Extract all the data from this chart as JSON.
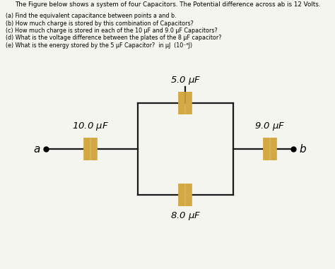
{
  "title_text": "The Figure below shows a system of four Capacitors. The Potential difference across ab is 12 Volts.",
  "questions": [
    "(a) Find the equivalent capacitance between points a and b.",
    "(b) How much charge is stored by this combination of Capacitors?",
    "(c) How much charge is stored in each of the 10 μF and 9.0 μF Capacitors?",
    "(d) What is the voltage difference between the plates of the 8 μF capacitor?",
    "(e) What is the energy stored by the 5 μF Capacitor?  in μJ  (10⁻⁶J)"
  ],
  "cap_color": "#D4A843",
  "wire_color": "#1a1a1a",
  "bg_color": "#f5f5f0",
  "labels": {
    "top": "5.0 $\\mu$F",
    "bottom": "8.0 $\\mu$F",
    "left": "10.0 $\\mu$F",
    "right": "9.0 $\\mu$F"
  },
  "label_a": "$a$",
  "label_b": "$b$",
  "fig_width": 4.74,
  "fig_height": 3.81,
  "dpi": 100
}
